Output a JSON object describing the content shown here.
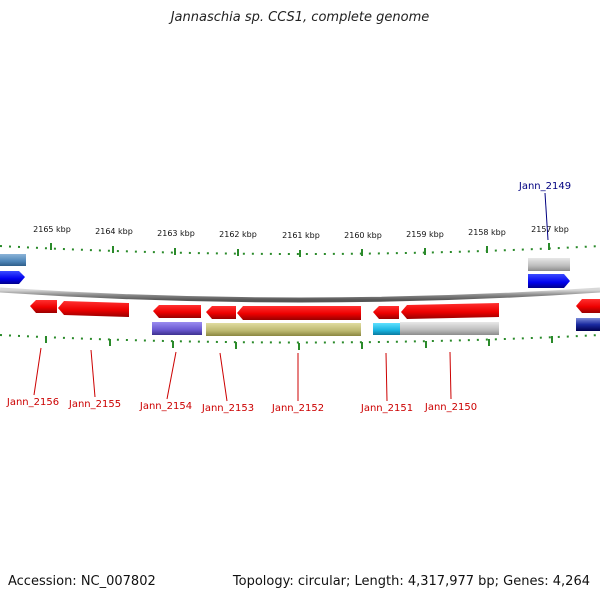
{
  "title": "Jannaschia sp. CCS1, complete genome",
  "footer": {
    "accession": "Accession: NC_007802",
    "topology": "Topology: circular; Length: 4,317,977 bp; Genes: 4,264"
  },
  "scale_labels": [
    "2165 kbp",
    "2164 kbp",
    "2163 kbp",
    "2162 kbp",
    "2161 kbp",
    "2160 kbp",
    "2159 kbp",
    "2158 kbp",
    "2157 kbp"
  ],
  "genes_bottom": [
    {
      "name": "Jann_2156",
      "color": "#cc0000"
    },
    {
      "name": "Jann_2155",
      "color": "#cc0000"
    },
    {
      "name": "Jann_2154",
      "color": "#cc0000"
    },
    {
      "name": "Jann_2153",
      "color": "#cc0000"
    },
    {
      "name": "Jann_2152",
      "color": "#cc0000"
    },
    {
      "name": "Jann_2151",
      "color": "#cc0000"
    },
    {
      "name": "Jann_2150",
      "color": "#cc0000"
    }
  ],
  "gene_top": {
    "name": "Jann_2149",
    "color": "#000080"
  }
}
